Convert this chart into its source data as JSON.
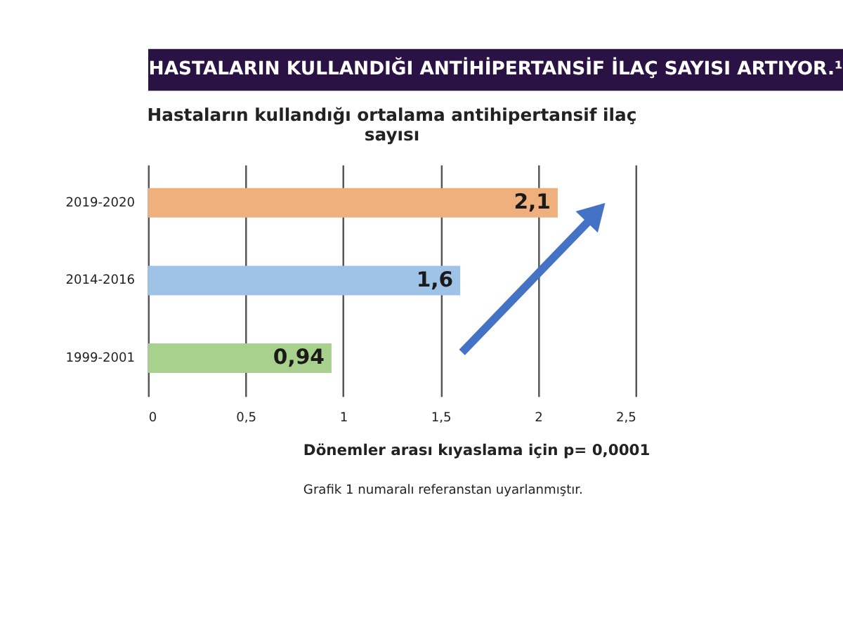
{
  "chart_data": {
    "type": "bar",
    "orientation": "horizontal",
    "title": "HASTALARIN KULLANDIĞI ANTİHİPERTANSİF İLAÇ SAYISI ARTIYOR.¹",
    "subtitle": "Hastaların kullandığı ortalama antihipertansif ilaç sayısı",
    "categories": [
      "2019-2020",
      "2014-2016",
      "1999-2001"
    ],
    "values": [
      2.1,
      1.6,
      0.94
    ],
    "colors": [
      "#f0b07e",
      "#9fc3e6",
      "#a9d18e"
    ],
    "value_labels": [
      "2,1",
      "1,6",
      "0,94"
    ],
    "xlim": [
      0,
      2.5
    ],
    "xticks": [
      0,
      {
        "value": 0.5,
        "label": "0,5"
      },
      1,
      {
        "value": 1.5,
        "label": "1,5"
      },
      2,
      {
        "value": 2.5,
        "label": "2,5"
      }
    ],
    "grid": "x",
    "annotations": [
      "Dönemler arası kıyaslama için p= 0,0001",
      "Grafik 1 numaralı referanstan uyarlanmıştır."
    ]
  }
}
